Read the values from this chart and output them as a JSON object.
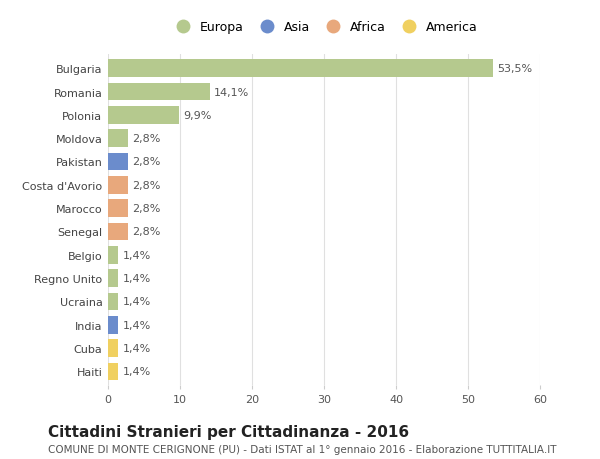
{
  "countries": [
    "Bulgaria",
    "Romania",
    "Polonia",
    "Moldova",
    "Pakistan",
    "Costa d'Avorio",
    "Marocco",
    "Senegal",
    "Belgio",
    "Regno Unito",
    "Ucraina",
    "India",
    "Cuba",
    "Haiti"
  ],
  "values": [
    53.5,
    14.1,
    9.9,
    2.8,
    2.8,
    2.8,
    2.8,
    2.8,
    1.4,
    1.4,
    1.4,
    1.4,
    1.4,
    1.4
  ],
  "labels": [
    "53,5%",
    "14,1%",
    "9,9%",
    "2,8%",
    "2,8%",
    "2,8%",
    "2,8%",
    "2,8%",
    "1,4%",
    "1,4%",
    "1,4%",
    "1,4%",
    "1,4%",
    "1,4%"
  ],
  "continents": [
    "Europa",
    "Europa",
    "Europa",
    "Europa",
    "Asia",
    "Africa",
    "Africa",
    "Africa",
    "Europa",
    "Europa",
    "Europa",
    "Asia",
    "America",
    "America"
  ],
  "colors": {
    "Europa": "#b5c98e",
    "Asia": "#6b8ccc",
    "Africa": "#e8a87c",
    "America": "#f0d060"
  },
  "xlim": [
    0,
    60
  ],
  "xticks": [
    0,
    10,
    20,
    30,
    40,
    50,
    60
  ],
  "title": "Cittadini Stranieri per Cittadinanza - 2016",
  "subtitle": "COMUNE DI MONTE CERIGNONE (PU) - Dati ISTAT al 1° gennaio 2016 - Elaborazione TUTTITALIA.IT",
  "background_color": "#ffffff",
  "grid_color": "#e0e0e0",
  "bar_height": 0.75,
  "title_fontsize": 11,
  "subtitle_fontsize": 7.5,
  "label_fontsize": 8,
  "tick_fontsize": 8,
  "legend_order": [
    "Europa",
    "Asia",
    "Africa",
    "America"
  ]
}
